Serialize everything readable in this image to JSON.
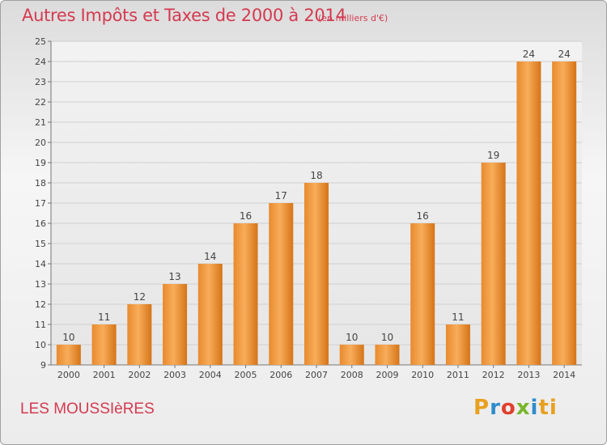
{
  "header": {
    "title": "Autres Impôts et Taxes de 2000 à 2014",
    "subtitle": "(en milliers d'€)"
  },
  "footer": {
    "place": "LES MOUSSIèRES",
    "logo": "Proxiti"
  },
  "colors": {
    "bar_light": "#f7a74f",
    "bar_dark": "#d9771c",
    "grid": "#d0d0d0",
    "title": "#d43a50"
  },
  "chart_data": {
    "type": "bar",
    "title": "Autres Impôts et Taxes de 2000 à 2014",
    "subtitle": "(en milliers d'€)",
    "categories": [
      "2000",
      "2001",
      "2002",
      "2003",
      "2004",
      "2005",
      "2006",
      "2007",
      "2008",
      "2009",
      "2010",
      "2011",
      "2012",
      "2013",
      "2014"
    ],
    "values": [
      10,
      11,
      12,
      13,
      14,
      16,
      17,
      18,
      10,
      10,
      16,
      11,
      19,
      24,
      24
    ],
    "ylim": [
      9,
      25
    ],
    "yticks": [
      9,
      10,
      11,
      12,
      13,
      14,
      15,
      16,
      17,
      18,
      19,
      20,
      21,
      22,
      23,
      24,
      25
    ],
    "grid": true,
    "data_labels": true
  }
}
